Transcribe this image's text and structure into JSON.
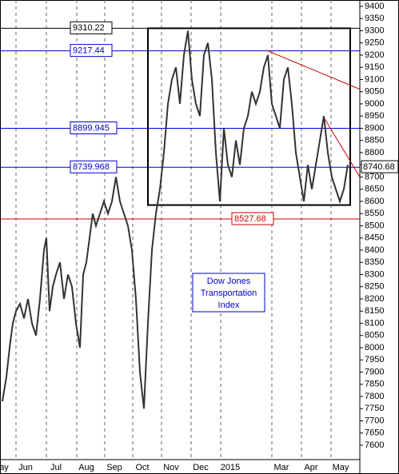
{
  "chart_data": {
    "type": "line",
    "annotation": "Dow Jones Transportation Index",
    "xlim": [
      0,
      450
    ],
    "ylim": [
      7541,
      9426
    ],
    "yticks": [
      7600,
      7650,
      7700,
      7750,
      7800,
      7850,
      7900,
      7950,
      8000,
      8050,
      8100,
      8150,
      8200,
      8250,
      8300,
      8350,
      8400,
      8450,
      8500,
      8550,
      8600,
      8650,
      8700,
      8750,
      8800,
      8850,
      8900,
      8950,
      9000,
      9050,
      9100,
      9150,
      9200,
      9250,
      9300,
      9350,
      9400
    ],
    "xticks": [
      {
        "value": -7,
        "label": "ay"
      },
      {
        "value": 20,
        "label": "Jun"
      },
      {
        "value": 58,
        "label": "Jul"
      },
      {
        "value": 96,
        "label": "Aug"
      },
      {
        "value": 131,
        "label": "Sep"
      },
      {
        "value": 166,
        "label": "Oct"
      },
      {
        "value": 202,
        "label": "Nov"
      },
      {
        "value": 239,
        "label": "Dec"
      },
      {
        "value": 276,
        "label": "2015"
      },
      {
        "value": 340,
        "label": "Mar"
      },
      {
        "value": 377,
        "label": "Apr"
      },
      {
        "value": 414,
        "label": "May"
      }
    ],
    "grid": true,
    "series": [
      {
        "name": "Dow Jones Transportation Index",
        "color": "#333333",
        "x": [
          3,
          8,
          12,
          16,
          20,
          25,
          30,
          35,
          40,
          45,
          50,
          55,
          58,
          62,
          66,
          70,
          75,
          80,
          85,
          90,
          95,
          100,
          104,
          108,
          112,
          116,
          120,
          125,
          130,
          135,
          140,
          145,
          150,
          155,
          160,
          165,
          170,
          175,
          180,
          185,
          190,
          195,
          200,
          205,
          210,
          215,
          220,
          225,
          230,
          235,
          240,
          245,
          250,
          255,
          260,
          265,
          270,
          275,
          280,
          285,
          290,
          295,
          300,
          305,
          310,
          315,
          320,
          325,
          330,
          335,
          340,
          345,
          350,
          355,
          360,
          365,
          370,
          375,
          380,
          385,
          390,
          395,
          400,
          405,
          410,
          415,
          420,
          425,
          430,
          435
        ],
        "values": [
          7780,
          7880,
          8000,
          8100,
          8150,
          8180,
          8120,
          8200,
          8100,
          8050,
          8200,
          8400,
          8450,
          8150,
          8250,
          8300,
          8350,
          8200,
          8300,
          8250,
          8100,
          8000,
          8300,
          8350,
          8450,
          8550,
          8500,
          8550,
          8600,
          8550,
          8600,
          8700,
          8600,
          8550,
          8500,
          8400,
          8200,
          7900,
          7750,
          8100,
          8400,
          8550,
          8650,
          8800,
          9000,
          9100,
          9150,
          9000,
          9200,
          9300,
          9100,
          9000,
          8950,
          9200,
          9250,
          9100,
          8800,
          8600,
          8900,
          8750,
          8700,
          8850,
          8750,
          8900,
          8950,
          9050,
          9000,
          9050,
          9150,
          9200,
          9000,
          8950,
          8900,
          9100,
          9150,
          9000,
          8800,
          8700,
          8600,
          8750,
          8650,
          8750,
          8850,
          8950,
          8800,
          8700,
          8650,
          8600,
          8650,
          8750
        ]
      }
    ],
    "levels": [
      {
        "value": 9310.22,
        "label": "9310.22",
        "color": "#000000"
      },
      {
        "value": 9217.44,
        "label": "9217.44",
        "color": "#0000cc"
      },
      {
        "value": 8899.945,
        "label": "8899.945",
        "color": "#0000cc"
      },
      {
        "value": 8739.968,
        "label": "8739.968",
        "color": "#0000cc"
      },
      {
        "value": 8527.68,
        "label": "8527.68",
        "color": "#cc0000"
      }
    ],
    "last": {
      "value": 8740.68,
      "label": "8740.68"
    },
    "box": {
      "x": [
        185,
        438
      ],
      "y": [
        9310,
        8585
      ]
    },
    "trendlines": [
      {
        "x": [
          333,
          450
        ],
        "y": [
          9220,
          9060
        ],
        "color": "#cc0000"
      },
      {
        "x": [
          404,
          450
        ],
        "y": [
          8950,
          8700
        ],
        "color": "#cc0000"
      }
    ]
  }
}
